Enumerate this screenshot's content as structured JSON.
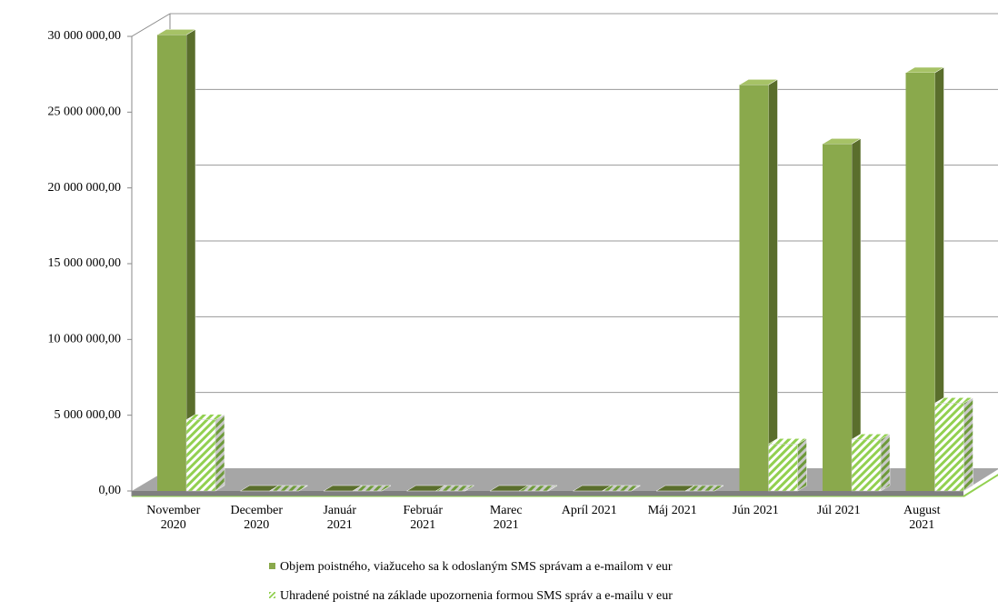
{
  "chart_data": {
    "type": "bar3d",
    "categories": [
      "November 2020",
      "December 2020",
      "Január 2021",
      "Február 2021",
      "Marec 2021",
      "Apríl 2021",
      "Máj 2021",
      "Jún 2021",
      "Júl 2021",
      "August 2021"
    ],
    "series": [
      {
        "name": "Objem poistného, viažuceho sa k odoslaným SMS správam a e-mailom v eur",
        "color": "#8aa94c",
        "values": [
          30100000,
          0,
          0,
          0,
          0,
          0,
          0,
          26800000,
          22900000,
          27600000
        ]
      },
      {
        "name": "Uhradené poistné na základe upozornenia formou SMS správ a e-mailu v eur",
        "color": "#92d050",
        "values": [
          4700000,
          0,
          0,
          0,
          0,
          0,
          0,
          3100000,
          3400000,
          5800000
        ]
      }
    ],
    "ylim": [
      0,
      30000000
    ],
    "yticks": [
      {
        "value": 0,
        "label": "0,00"
      },
      {
        "value": 5000000,
        "label": "5 000 000,00"
      },
      {
        "value": 10000000,
        "label": "10 000 000,00"
      },
      {
        "value": 15000000,
        "label": "15 000 000,00"
      },
      {
        "value": 20000000,
        "label": "20 000 000,00"
      },
      {
        "value": 25000000,
        "label": "25 000 000,00"
      },
      {
        "value": 30000000,
        "label": "30 000 000,00"
      }
    ],
    "grid": true
  }
}
